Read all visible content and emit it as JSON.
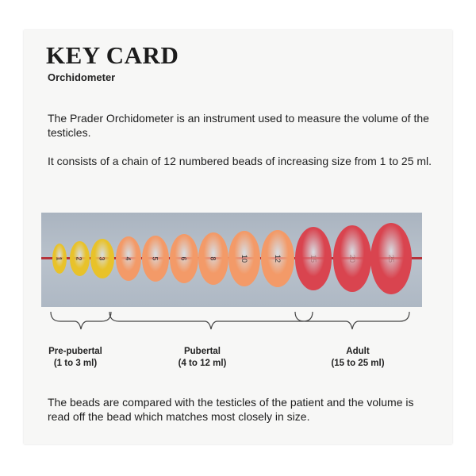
{
  "title": "KEY CARD",
  "subtitle": "Orchidometer",
  "paragraphs": [
    "The Prader Orchidometer is an instrument used to measure the volume of the testicles.",
    "It consists of a chain of 12 numbered beads of increasing size from 1 to 25 ml.",
    "The beads are compared with the testicles of the patient and the volume is read off the bead which matches most closely in size."
  ],
  "beads": [
    {
      "label": "1",
      "color": "#e8c22a",
      "group": "pre-pubertal"
    },
    {
      "label": "2",
      "color": "#e8c22a",
      "group": "pre-pubertal"
    },
    {
      "label": "3",
      "color": "#e8c22a",
      "group": "pre-pubertal"
    },
    {
      "label": "4",
      "color": "#f39a68",
      "group": "pubertal"
    },
    {
      "label": "5",
      "color": "#f39a68",
      "group": "pubertal"
    },
    {
      "label": "6",
      "color": "#f39a68",
      "group": "pubertal"
    },
    {
      "label": "8",
      "color": "#f39a68",
      "group": "pubertal"
    },
    {
      "label": "10",
      "color": "#f39a68",
      "group": "pubertal"
    },
    {
      "label": "12",
      "color": "#f39a68",
      "group": "pubertal"
    },
    {
      "label": "15",
      "color": "#d9444f",
      "group": "adult"
    },
    {
      "label": "20",
      "color": "#d9444f",
      "group": "adult"
    },
    {
      "label": "25",
      "color": "#d9444f",
      "group": "adult"
    }
  ],
  "groups": [
    {
      "name": "Pre-pubertal",
      "range": "(1 to 3 ml)"
    },
    {
      "name": "Pubertal",
      "range": "(4 to 12 ml)"
    },
    {
      "name": "Adult",
      "range": "(15 to 25 ml)"
    }
  ]
}
